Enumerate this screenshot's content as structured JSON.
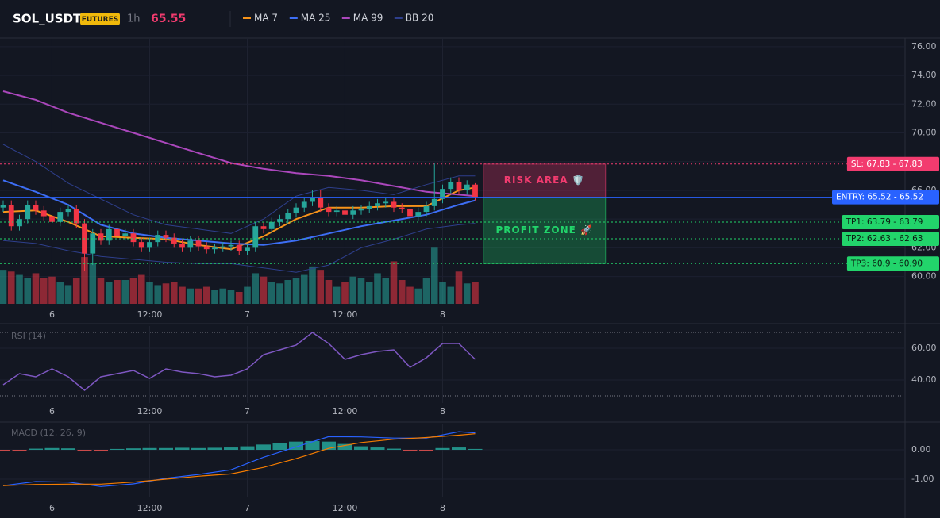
{
  "chart_data": [
    {
      "type": "candlestick",
      "title": "SOL_USDT",
      "badge": "FUTURES",
      "interval": "1h",
      "last_price": 65.55,
      "up_color": "#26a69a",
      "down_color": "#f23645",
      "x": [
        0,
        1,
        2,
        3,
        4,
        5,
        6,
        7,
        8,
        9,
        10,
        11,
        12,
        13,
        14,
        15,
        16,
        17,
        18,
        19,
        20,
        21,
        22,
        23,
        24,
        25,
        26,
        27,
        28,
        29,
        30,
        31,
        32,
        33,
        34,
        35,
        36,
        37,
        38,
        39,
        40,
        41,
        42,
        43,
        44,
        45,
        46,
        47,
        48,
        49,
        50,
        51,
        52,
        53,
        54,
        55,
        56,
        57,
        58
      ],
      "open": [
        64.8,
        65.0,
        63.5,
        64.0,
        65.0,
        64.6,
        64.2,
        63.8,
        64.5,
        64.7,
        63.7,
        61.6,
        63.0,
        62.5,
        63.3,
        62.8,
        63.0,
        62.4,
        62.0,
        62.4,
        62.9,
        62.7,
        62.3,
        62.0,
        62.5,
        62.1,
        61.9,
        62.0,
        62.1,
        62.2,
        61.8,
        62.0,
        63.5,
        63.3,
        63.8,
        64.0,
        64.4,
        64.8,
        65.2,
        65.5,
        64.8,
        64.5,
        64.6,
        64.3,
        64.6,
        64.7,
        64.9,
        65.1,
        65.2,
        64.8,
        64.7,
        64.2,
        64.5,
        64.9,
        65.4,
        66.1,
        66.6,
        66.0,
        66.4
      ],
      "high": [
        65.3,
        65.3,
        64.3,
        65.3,
        65.3,
        64.9,
        64.5,
        64.8,
        65.0,
        65.0,
        64.0,
        63.3,
        63.3,
        63.6,
        63.6,
        63.3,
        63.3,
        62.7,
        62.7,
        63.2,
        63.2,
        63.0,
        62.6,
        62.8,
        62.8,
        62.4,
        62.3,
        62.4,
        62.5,
        62.5,
        62.3,
        63.8,
        63.8,
        64.1,
        64.3,
        64.7,
        65.1,
        65.5,
        66.0,
        66.0,
        65.1,
        64.9,
        64.9,
        64.9,
        65.0,
        65.2,
        65.4,
        65.5,
        65.5,
        65.1,
        65.0,
        64.8,
        65.2,
        67.9,
        66.4,
        66.9,
        66.9,
        66.7,
        66.5
      ],
      "low": [
        64.5,
        63.2,
        63.2,
        63.7,
        64.3,
        63.9,
        63.5,
        63.5,
        64.2,
        63.4,
        60.4,
        60.8,
        62.2,
        62.2,
        62.5,
        62.5,
        62.1,
        61.7,
        61.7,
        62.1,
        62.4,
        62.0,
        61.7,
        61.7,
        61.8,
        61.6,
        61.6,
        61.7,
        61.8,
        61.5,
        61.5,
        61.7,
        63.0,
        63.0,
        63.5,
        63.7,
        64.1,
        64.5,
        64.9,
        64.5,
        64.2,
        64.2,
        64.0,
        64.0,
        64.3,
        64.4,
        64.6,
        64.8,
        64.5,
        64.4,
        63.9,
        63.9,
        64.2,
        64.6,
        65.1,
        65.8,
        65.7,
        65.7,
        65.3
      ],
      "close": [
        65.0,
        63.5,
        64.0,
        65.0,
        64.6,
        64.2,
        63.8,
        64.5,
        64.7,
        63.7,
        61.6,
        63.0,
        62.5,
        63.3,
        62.8,
        63.0,
        62.4,
        62.0,
        62.4,
        62.9,
        62.7,
        62.3,
        62.0,
        62.5,
        62.1,
        61.9,
        62.0,
        62.1,
        62.2,
        61.8,
        62.0,
        63.5,
        63.3,
        63.8,
        64.0,
        64.4,
        64.8,
        65.2,
        65.5,
        64.8,
        64.5,
        64.6,
        64.3,
        64.6,
        64.7,
        64.9,
        65.1,
        65.2,
        64.8,
        64.7,
        64.2,
        64.5,
        64.9,
        65.4,
        66.1,
        66.6,
        66.0,
        66.4,
        65.55
      ],
      "volume": [
        40,
        38,
        34,
        30,
        36,
        30,
        32,
        26,
        22,
        30,
        55,
        48,
        30,
        26,
        28,
        28,
        30,
        34,
        26,
        22,
        24,
        26,
        20,
        18,
        18,
        20,
        16,
        18,
        16,
        14,
        20,
        36,
        32,
        26,
        24,
        28,
        30,
        34,
        44,
        40,
        28,
        20,
        26,
        32,
        30,
        26,
        36,
        30,
        50,
        28,
        20,
        18,
        30,
        66,
        26,
        20,
        38,
        24,
        26
      ],
      "volume_lim": [
        0,
        70
      ],
      "lines": [
        {
          "name": "MA 7",
          "color": "#f7931a",
          "x": [
            0,
            4,
            8,
            12,
            16,
            20,
            24,
            28,
            32,
            36,
            40,
            44,
            48,
            52,
            56,
            58
          ],
          "values": [
            64.5,
            64.6,
            63.8,
            62.8,
            62.7,
            62.6,
            62.2,
            61.9,
            62.8,
            64.0,
            64.8,
            64.8,
            64.9,
            64.9,
            66.0,
            66.2
          ]
        },
        {
          "name": "MA 25",
          "color": "#3d6ef5",
          "x": [
            0,
            4,
            8,
            12,
            16,
            20,
            24,
            28,
            32,
            36,
            40,
            44,
            48,
            52,
            56,
            58
          ],
          "values": [
            66.7,
            65.9,
            65.0,
            63.6,
            63.0,
            62.7,
            62.5,
            62.3,
            62.2,
            62.5,
            63.0,
            63.5,
            63.9,
            64.3,
            65.0,
            65.3
          ]
        },
        {
          "name": "MA 99",
          "color": "#ab47bc",
          "x": [
            0,
            4,
            8,
            12,
            16,
            20,
            24,
            28,
            32,
            36,
            40,
            44,
            48,
            52,
            56,
            58
          ],
          "values": [
            72.9,
            72.3,
            71.4,
            70.7,
            70.0,
            69.3,
            68.6,
            67.9,
            67.5,
            67.2,
            67.0,
            66.7,
            66.3,
            65.9,
            65.7,
            65.6
          ]
        },
        {
          "name": "BB 20",
          "color": "#2e3f8c",
          "x": [
            0,
            4,
            8,
            12,
            16,
            20,
            24,
            28,
            32,
            36,
            40,
            44,
            48,
            52,
            56,
            58
          ],
          "values": [
            69.2,
            68.0,
            66.5,
            65.4,
            64.3,
            63.6,
            63.3,
            63.0,
            64.0,
            65.6,
            66.2,
            66.0,
            65.7,
            66.4,
            67.0,
            67.0
          ],
          "lower": [
            62.5,
            62.3,
            61.8,
            61.4,
            61.2,
            61.0,
            60.9,
            60.9,
            60.6,
            60.3,
            60.8,
            62.0,
            62.6,
            63.3,
            63.6,
            63.7
          ]
        }
      ],
      "levels": [
        {
          "label": "SL: 67.83 - 67.83",
          "value": 67.83,
          "color": "#f23b6f",
          "style": "dotted"
        },
        {
          "label": "ENTRY: 65.52 - 65.52",
          "value": 65.52,
          "color": "#2962ff",
          "style": "solid"
        },
        {
          "label": "TP1: 63.79 - 63.79",
          "value": 63.79,
          "color": "#22d46b",
          "style": "dotted"
        },
        {
          "label": "TP2: 62.63 - 62.63",
          "value": 62.63,
          "color": "#22d46b",
          "style": "dotted"
        },
        {
          "label": "TP3: 60.9 - 60.90",
          "value": 60.9,
          "color": "#22d46b",
          "style": "dotted"
        }
      ],
      "zones": [
        {
          "label": "RISK AREA 🛡️",
          "from": 65.52,
          "to": 67.83,
          "color": "#f23b6f"
        },
        {
          "label": "PROFIT ZONE 🚀",
          "from": 60.9,
          "to": 65.52,
          "color": "#22d46b"
        }
      ],
      "xlim": [
        -0.39,
        110.83
      ],
      "xticks": [
        {
          "value": 6,
          "label": "6"
        },
        {
          "value": 18,
          "label": "12:00"
        },
        {
          "value": 30,
          "label": "7"
        },
        {
          "value": 42,
          "label": "12:00"
        },
        {
          "value": 54,
          "label": "8"
        }
      ],
      "ylim": [
        58.1,
        76.6
      ],
      "yticks": [
        {
          "value": 60,
          "label": "60.00"
        },
        {
          "value": 62,
          "label": "62.00"
        },
        {
          "value": 64,
          "label": "64.00"
        },
        {
          "value": 66,
          "label": "66.00"
        },
        {
          "value": 68,
          "label": "68.00"
        },
        {
          "value": 70,
          "label": "70.00"
        },
        {
          "value": 72,
          "label": "72.00"
        },
        {
          "value": 74,
          "label": "74.00"
        },
        {
          "value": 76,
          "label": "76.00"
        }
      ]
    },
    {
      "type": "line",
      "title": "RSI (14)",
      "color": "#7e57c2",
      "x": [
        0,
        2,
        4,
        6,
        8,
        10,
        12,
        14,
        16,
        18,
        20,
        22,
        24,
        26,
        28,
        30,
        32,
        34,
        36,
        38,
        40,
        42,
        44,
        46,
        48,
        50,
        52,
        54,
        56,
        58
      ],
      "values": [
        37,
        44,
        42,
        47,
        42,
        33.5,
        42,
        44,
        46,
        41,
        47,
        45,
        44,
        42,
        43,
        47,
        56,
        59,
        62,
        70,
        63,
        53,
        56,
        58,
        59,
        48,
        54,
        63,
        63,
        53
      ],
      "levels": [
        30,
        70
      ],
      "xlim": [
        -0.39,
        110.83
      ],
      "xticks": [
        {
          "value": 6,
          "label": "6"
        },
        {
          "value": 18,
          "label": "12:00"
        },
        {
          "value": 30,
          "label": "7"
        },
        {
          "value": 42,
          "label": "12:00"
        },
        {
          "value": 54,
          "label": "8"
        }
      ],
      "ylim": [
        25.5,
        74
      ],
      "yticks": [
        {
          "value": 40,
          "label": "40.00"
        },
        {
          "value": 60,
          "label": "60.00"
        }
      ]
    },
    {
      "type": "macd",
      "title": "MACD (12, 26, 9)",
      "up_color": "#26a69a",
      "down_color": "#ef5350",
      "hist_x": [
        0,
        2,
        4,
        6,
        8,
        10,
        12,
        14,
        16,
        18,
        20,
        22,
        24,
        26,
        28,
        30,
        32,
        34,
        36,
        38,
        40,
        42,
        44,
        46,
        48,
        50,
        52,
        54,
        56,
        58
      ],
      "histogram": [
        -0.05,
        -0.04,
        0.04,
        0.06,
        0.05,
        -0.04,
        -0.05,
        0.03,
        0.05,
        0.06,
        0.06,
        0.07,
        0.06,
        0.07,
        0.08,
        0.12,
        0.18,
        0.24,
        0.28,
        0.3,
        0.28,
        0.2,
        0.12,
        0.08,
        0.04,
        -0.03,
        -0.02,
        0.06,
        0.08,
        0.03
      ],
      "series": [
        {
          "name": "MACD",
          "color": "#2962ff",
          "x": [
            0,
            4,
            8,
            12,
            16,
            20,
            24,
            28,
            32,
            36,
            40,
            44,
            48,
            52,
            56,
            58
          ],
          "values": [
            -1.22,
            -1.08,
            -1.1,
            -1.25,
            -1.16,
            -0.97,
            -0.84,
            -0.68,
            -0.25,
            0.1,
            0.45,
            0.44,
            0.4,
            0.4,
            0.62,
            0.58
          ]
        },
        {
          "name": "Signal",
          "color": "#f57c00",
          "x": [
            0,
            4,
            8,
            12,
            16,
            20,
            24,
            28,
            32,
            36,
            40,
            44,
            48,
            52,
            56,
            58
          ],
          "values": [
            -1.22,
            -1.18,
            -1.17,
            -1.17,
            -1.1,
            -1.0,
            -0.9,
            -0.82,
            -0.6,
            -0.3,
            0.05,
            0.25,
            0.36,
            0.42,
            0.5,
            0.55
          ]
        }
      ],
      "xlim": [
        -0.39,
        110.83
      ],
      "xticks": [
        {
          "value": 6,
          "label": "6"
        },
        {
          "value": 18,
          "label": "12:00"
        },
        {
          "value": 30,
          "label": "7"
        },
        {
          "value": 42,
          "label": "12:00"
        },
        {
          "value": 54,
          "label": "8"
        }
      ],
      "ylim": [
        -1.62,
        0.865
      ],
      "yticks": [
        {
          "value": -1,
          "label": "-1.00"
        },
        {
          "value": 0,
          "label": "0.00"
        }
      ]
    }
  ]
}
